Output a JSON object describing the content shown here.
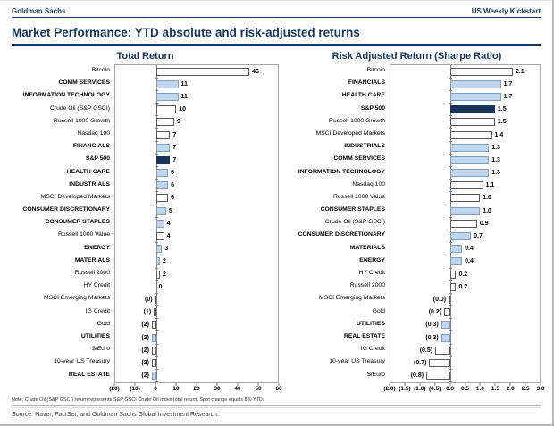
{
  "header": {
    "left": "Goldman Sachs",
    "right": "US Weekly Kickstart"
  },
  "title": "Market Performance: YTD absolute and risk-adjusted returns",
  "note": "Note: Crude Oil (S&P GSCI) return represents S&P GSCI Crude Oil Index total return. Spot change equals 8% YTD.",
  "source": "Source: Haver, FactSet, and Goldman Sachs Global Investment Research.",
  "colors": {
    "navy": "#17365D",
    "lightblue": "#BDD7EE",
    "white_bar": "#FFFFFF",
    "frame": "#A6A6A6"
  },
  "chart_data": [
    {
      "type": "bar",
      "orientation": "horizontal",
      "title": "Total Return",
      "xlabel": "",
      "ylabel": "",
      "xlim": [
        -20,
        60
      ],
      "grid": false,
      "legend": "none",
      "ticks": [
        {
          "v": -20,
          "label": "(20)"
        },
        {
          "v": -10,
          "label": "(10)"
        },
        {
          "v": 0,
          "label": "0"
        },
        {
          "v": 10,
          "label": "10"
        },
        {
          "v": 20,
          "label": "20"
        },
        {
          "v": 30,
          "label": "30"
        },
        {
          "v": 40,
          "label": "40"
        },
        {
          "v": 50,
          "label": "50"
        },
        {
          "v": 60,
          "label": "60"
        }
      ],
      "rows": [
        {
          "label": "Bitcoin",
          "value": 46,
          "display": "46",
          "fill": "white",
          "bold": false
        },
        {
          "label": "COMM SERVICES",
          "value": 11,
          "display": "11",
          "fill": "lightblue",
          "bold": true
        },
        {
          "label": "INFORMATION TECHNOLOGY",
          "value": 11,
          "display": "11",
          "fill": "lightblue",
          "bold": true
        },
        {
          "label": "Crude Oil (S&P GSCI)",
          "value": 10,
          "display": "10",
          "fill": "white",
          "bold": false
        },
        {
          "label": "Russell 1000 Growth",
          "value": 9,
          "display": "9",
          "fill": "white",
          "bold": false
        },
        {
          "label": "Nasdaq 100",
          "value": 7,
          "display": "7",
          "fill": "white",
          "bold": false
        },
        {
          "label": "FINANCIALS",
          "value": 7,
          "display": "7",
          "fill": "lightblue",
          "bold": true
        },
        {
          "label": "S&P 500",
          "value": 7,
          "display": "7",
          "fill": "navy",
          "bold": true
        },
        {
          "label": "HEALTH CARE",
          "value": 6,
          "display": "6",
          "fill": "lightblue",
          "bold": true
        },
        {
          "label": "INDUSTRIALS",
          "value": 6,
          "display": "6",
          "fill": "lightblue",
          "bold": true
        },
        {
          "label": "MSCI Developed Markets",
          "value": 6,
          "display": "6",
          "fill": "white",
          "bold": false
        },
        {
          "label": "CONSUMER DISCRETIONARY",
          "value": 5,
          "display": "5",
          "fill": "lightblue",
          "bold": true
        },
        {
          "label": "CONSUMER STAPLES",
          "value": 4,
          "display": "4",
          "fill": "lightblue",
          "bold": true
        },
        {
          "label": "Russell 1000 Value",
          "value": 4,
          "display": "4",
          "fill": "white",
          "bold": false
        },
        {
          "label": "ENERGY",
          "value": 3,
          "display": "3",
          "fill": "lightblue",
          "bold": true
        },
        {
          "label": "MATERIALS",
          "value": 2,
          "display": "2",
          "fill": "lightblue",
          "bold": true
        },
        {
          "label": "Russell 2000",
          "value": 2,
          "display": "2",
          "fill": "white",
          "bold": false
        },
        {
          "label": "HY Credit",
          "value": 0,
          "display": "0",
          "fill": "white",
          "bold": false
        },
        {
          "label": "MSCI Emerging Markets",
          "value": -0.4,
          "display": "(0)",
          "fill": "white",
          "bold": false
        },
        {
          "label": "IG Credit",
          "value": -1,
          "display": "(1)",
          "fill": "white",
          "bold": false
        },
        {
          "label": "Gold",
          "value": -2,
          "display": "(2)",
          "fill": "white",
          "bold": false
        },
        {
          "label": "UTILITIES",
          "value": -2,
          "display": "(2)",
          "fill": "lightblue",
          "bold": true
        },
        {
          "label": "$/Euro",
          "value": -2,
          "display": "(2)",
          "fill": "white",
          "bold": false
        },
        {
          "label": "10-year US Treasury",
          "value": -2,
          "display": "(2)",
          "fill": "white",
          "bold": false
        },
        {
          "label": "REAL ESTATE",
          "value": -2,
          "display": "(2)",
          "fill": "lightblue",
          "bold": true
        }
      ]
    },
    {
      "type": "bar",
      "orientation": "horizontal",
      "title": "Risk Adjusted Return (Sharpe Ratio)",
      "xlabel": "",
      "ylabel": "",
      "xlim": [
        -2.0,
        3.0
      ],
      "grid": false,
      "legend": "none",
      "ticks": [
        {
          "v": -2.0,
          "label": "(2.0)"
        },
        {
          "v": -1.5,
          "label": "(1.5)"
        },
        {
          "v": -1.0,
          "label": "(1.0)"
        },
        {
          "v": -0.5,
          "label": "(0.5)"
        },
        {
          "v": 0.0,
          "label": "0.0"
        },
        {
          "v": 0.5,
          "label": "0.5"
        },
        {
          "v": 1.0,
          "label": "1.0"
        },
        {
          "v": 1.5,
          "label": "1.5"
        },
        {
          "v": 2.0,
          "label": "2.0"
        },
        {
          "v": 2.5,
          "label": "2.5"
        },
        {
          "v": 3.0,
          "label": "3.0"
        }
      ],
      "rows": [
        {
          "label": "Bitcoin",
          "value": 2.1,
          "display": "2.1",
          "fill": "white",
          "bold": false
        },
        {
          "label": "FINANCIALS",
          "value": 1.7,
          "display": "1.7",
          "fill": "lightblue",
          "bold": true
        },
        {
          "label": "HEALTH CARE",
          "value": 1.7,
          "display": "1.7",
          "fill": "lightblue",
          "bold": true
        },
        {
          "label": "S&P 500",
          "value": 1.5,
          "display": "1.5",
          "fill": "navy",
          "bold": true
        },
        {
          "label": "Russell 1000 Growth",
          "value": 1.5,
          "display": "1.5",
          "fill": "white",
          "bold": false
        },
        {
          "label": "MSCI Developed Markets",
          "value": 1.4,
          "display": "1.4",
          "fill": "white",
          "bold": false
        },
        {
          "label": "INDUSTRIALS",
          "value": 1.3,
          "display": "1.3",
          "fill": "lightblue",
          "bold": true
        },
        {
          "label": "COMM SERVICES",
          "value": 1.3,
          "display": "1.3",
          "fill": "lightblue",
          "bold": true
        },
        {
          "label": "INFORMATION TECHNOLOGY",
          "value": 1.3,
          "display": "1.3",
          "fill": "lightblue",
          "bold": true
        },
        {
          "label": "Nasdaq 100",
          "value": 1.1,
          "display": "1.1",
          "fill": "white",
          "bold": false
        },
        {
          "label": "Russell 1000 Value",
          "value": 1.0,
          "display": "1.0",
          "fill": "white",
          "bold": false
        },
        {
          "label": "CONSUMER STAPLES",
          "value": 1.0,
          "display": "1.0",
          "fill": "lightblue",
          "bold": true
        },
        {
          "label": "Crude Oil (S&P GSCI)",
          "value": 0.9,
          "display": "0.9",
          "fill": "white",
          "bold": false
        },
        {
          "label": "CONSUMER DISCRETIONARY",
          "value": 0.7,
          "display": "0.7",
          "fill": "lightblue",
          "bold": true
        },
        {
          "label": "MATERIALS",
          "value": 0.4,
          "display": "0.4",
          "fill": "lightblue",
          "bold": true
        },
        {
          "label": "ENERGY",
          "value": 0.4,
          "display": "0.4",
          "fill": "lightblue",
          "bold": true
        },
        {
          "label": "HY Credit",
          "value": 0.2,
          "display": "0.2",
          "fill": "white",
          "bold": false
        },
        {
          "label": "Russell 2000",
          "value": 0.2,
          "display": "0.2",
          "fill": "white",
          "bold": false
        },
        {
          "label": "MSCI Emerging Markets",
          "value": -0.05,
          "display": "(0.0)",
          "fill": "white",
          "bold": false
        },
        {
          "label": "Gold",
          "value": -0.2,
          "display": "(0.2)",
          "fill": "white",
          "bold": false
        },
        {
          "label": "UTILITIES",
          "value": -0.3,
          "display": "(0.3)",
          "fill": "lightblue",
          "bold": true
        },
        {
          "label": "REAL ESTATE",
          "value": -0.3,
          "display": "(0.3)",
          "fill": "lightblue",
          "bold": true
        },
        {
          "label": "IG Credit",
          "value": -0.5,
          "display": "(0.5)",
          "fill": "white",
          "bold": false
        },
        {
          "label": "10-year US Treasury",
          "value": -0.7,
          "display": "(0.7)",
          "fill": "white",
          "bold": false
        },
        {
          "label": "$/Euro",
          "value": -0.8,
          "display": "(0.8)",
          "fill": "white",
          "bold": false
        }
      ]
    }
  ]
}
